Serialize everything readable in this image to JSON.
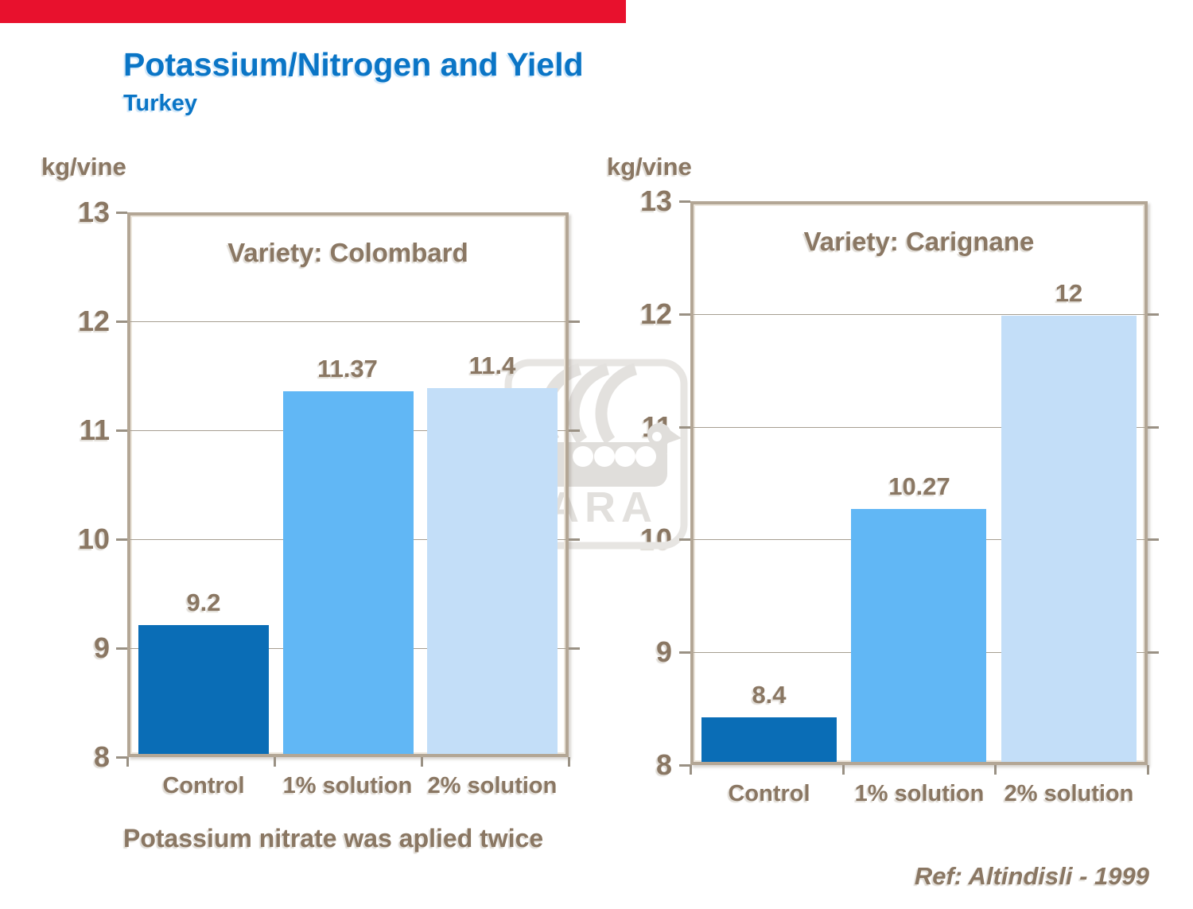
{
  "slide": {
    "title": "Potassium/Nitrogen and Yield",
    "subtitle": "Turkey",
    "note": "Potassium nitrate was aplied twice",
    "reference": "Ref: Altindisli - 1999",
    "watermark_text": "YARA"
  },
  "colors": {
    "title_blue": "#0a75c6",
    "text_brown": "#8a7763",
    "top_bar_red": "#e8112d",
    "plot_border_tan": "#b3a695",
    "gridline": "#a69e91",
    "bar_control": "#0a6db6",
    "bar_1pct": "#61b7f5",
    "bar_2pct": "#c3def8",
    "watermark_gray": "#e3e1de"
  },
  "chart_data": [
    {
      "type": "bar",
      "title": "Variety: Colombard",
      "ylabel": "kg/vine",
      "categories": [
        "Control",
        "1% solution",
        "2% solution"
      ],
      "values": [
        9.2,
        11.37,
        11.4
      ],
      "value_labels": [
        "9.2",
        "11.37",
        "11.4"
      ],
      "ylim": [
        8,
        13
      ],
      "yticks": [
        8,
        9,
        10,
        11,
        12,
        13
      ],
      "grid": true,
      "legend": "none",
      "bar_colors": [
        "#0a6db6",
        "#61b7f5",
        "#c3def8"
      ]
    },
    {
      "type": "bar",
      "title": "Variety: Carignane",
      "ylabel": "kg/vine",
      "categories": [
        "Control",
        "1% solution",
        "2% solution"
      ],
      "values": [
        8.4,
        10.27,
        12
      ],
      "value_labels": [
        "8.4",
        "10.27",
        "12"
      ],
      "ylim": [
        8,
        13
      ],
      "yticks": [
        8,
        9,
        10,
        11,
        12,
        13
      ],
      "grid": true,
      "legend": "none",
      "bar_colors": [
        "#0a6db6",
        "#61b7f5",
        "#c3def8"
      ]
    }
  ]
}
